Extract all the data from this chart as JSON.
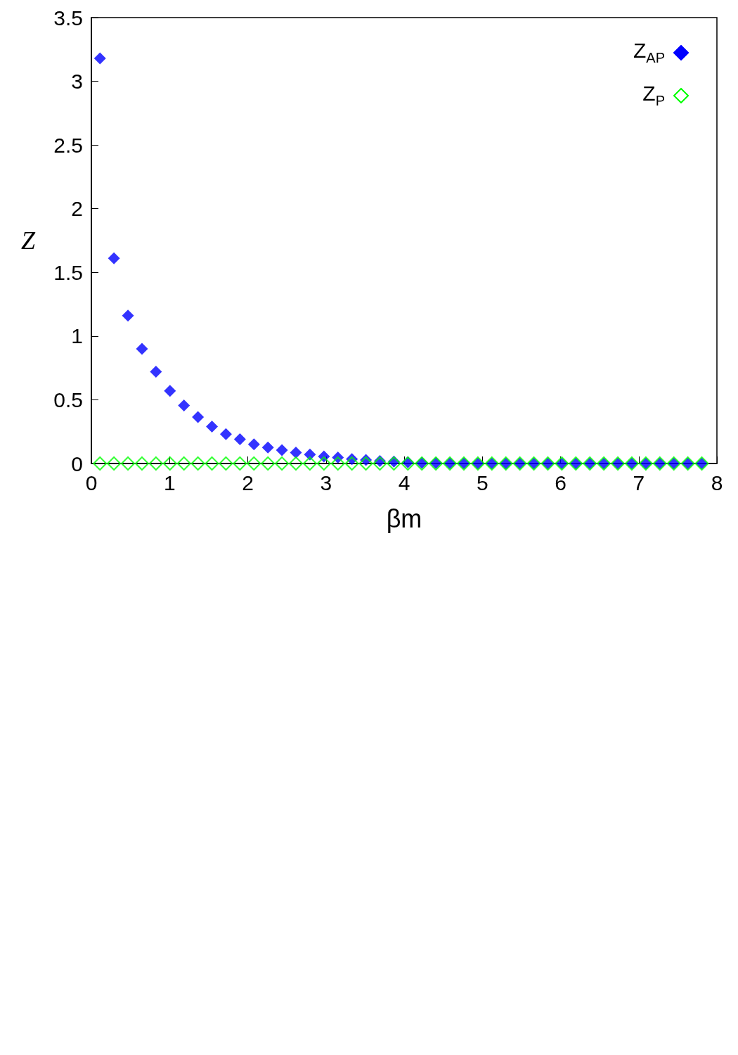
{
  "chart_data": {
    "type": "scatter",
    "xlabel": "βm",
    "ylabel": "Z",
    "xlim": [
      0,
      8
    ],
    "xticks": [
      0,
      1,
      2,
      3,
      4,
      5,
      6,
      7,
      8
    ],
    "ylim": [
      0,
      3.5
    ],
    "yticks": [
      0,
      0.5,
      1,
      1.5,
      2,
      2.5,
      3,
      3.5
    ],
    "grid": false,
    "legend": "top right",
    "marker": "diamond",
    "x": [
      0.11,
      0.289,
      0.468,
      0.647,
      0.826,
      1.005,
      1.184,
      1.363,
      1.542,
      1.721,
      1.9,
      2.079,
      2.258,
      2.437,
      2.616,
      2.795,
      2.974,
      3.153,
      3.332,
      3.511,
      3.69,
      3.869,
      4.048,
      4.227,
      4.406,
      4.585,
      4.764,
      4.943,
      5.122,
      5.301,
      5.48,
      5.659,
      5.838,
      6.017,
      6.196,
      6.375,
      6.554,
      6.733,
      6.912,
      7.091,
      7.27,
      7.449,
      7.628,
      7.807
    ],
    "series": [
      {
        "name": "Z$_{AP}$",
        "color": "#0000ff",
        "values": [
          3.18,
          1.61,
          1.16,
          0.9,
          0.72,
          0.57,
          0.455,
          0.365,
          0.29,
          0.23,
          0.19,
          0.15,
          0.125,
          0.105,
          0.086,
          0.07,
          0.055,
          0.047,
          0.035,
          0.027,
          0.02,
          0.015,
          0.01,
          0.006,
          0.004,
          0.002,
          0.001,
          0,
          0,
          0,
          0,
          0,
          0,
          0,
          0,
          0,
          0,
          0,
          0,
          0,
          0,
          0,
          0,
          0
        ]
      },
      {
        "name": "Z$_{P}$",
        "color": "#00ff00",
        "values": [
          0,
          0,
          0,
          0,
          0,
          0,
          0,
          0,
          0,
          0,
          0,
          0,
          0,
          0,
          0,
          0,
          0,
          0,
          0,
          0,
          0,
          0,
          0,
          0,
          0,
          0,
          0,
          0,
          0,
          0,
          0,
          0,
          0,
          0,
          0,
          0,
          0,
          0,
          0,
          0,
          0,
          0,
          0,
          0
        ]
      }
    ]
  }
}
